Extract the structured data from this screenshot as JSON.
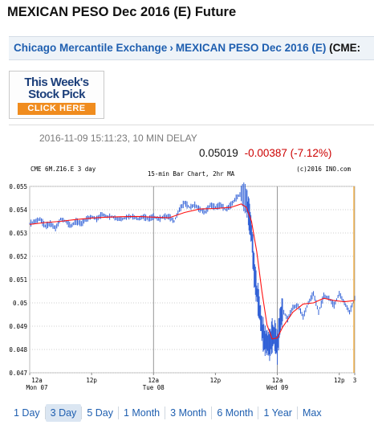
{
  "title": "MEXICAN PESO Dec 2016 (E) Future",
  "breadcrumb": {
    "exchange": "Chicago Mercantile Exchange",
    "separator": "›",
    "contract": "MEXICAN PESO Dec 2016 (E)",
    "code": "(CME:"
  },
  "ad": {
    "line1": "This Week's",
    "line2": "Stock Pick",
    "cta": "CLICK HERE"
  },
  "quote": {
    "timestamp": "2016-11-09 15:11:23, 10 MIN DELAY",
    "last": "0.05019",
    "change": "-0.00387 (-7.12%)"
  },
  "colors": {
    "link": "#1f5fb0",
    "down": "#cc0000",
    "bars": "#2f5fd6",
    "ma": "#ff1111",
    "orange_line": "#f0a020"
  },
  "chart_data": {
    "type": "line",
    "header_left": "CME 6M.Z16.E 3 day",
    "header_center": "15-min Bar Chart, 2hr MA",
    "header_right": "(c)2016 INO.com",
    "y_ticks": [
      "0.055",
      "0.054",
      "0.053",
      "0.052",
      "0.051",
      "0.05",
      "0.049",
      "0.048",
      "0.047"
    ],
    "ylim": [
      0.047,
      0.055
    ],
    "x_ticks": [
      {
        "line1": "12a",
        "line2": "Mon 07"
      },
      {
        "line1": "12p",
        "line2": ""
      },
      {
        "line1": "12a",
        "line2": "Tue 08"
      },
      {
        "line1": "12p",
        "line2": ""
      },
      {
        "line1": "12a",
        "line2": "Wed 09"
      },
      {
        "line1": "12p",
        "line2": ""
      },
      {
        "line1": "3",
        "line2": ""
      }
    ],
    "x_range_hours": [
      0,
      63
    ],
    "x_tick_hours": [
      0,
      12,
      24,
      36,
      48,
      60,
      63
    ],
    "day_dividers_hours": [
      24,
      48
    ],
    "series": [
      {
        "role": "price",
        "x": [
          0,
          1,
          2,
          3,
          4,
          5,
          6,
          7,
          8,
          9,
          10,
          11,
          12,
          13,
          14,
          15,
          16,
          17,
          18,
          19,
          20,
          21,
          22,
          23,
          24,
          25,
          26,
          27,
          28,
          29,
          30,
          31,
          32,
          33,
          34,
          35,
          36,
          37,
          38,
          39,
          40,
          41,
          42,
          42.5,
          43,
          43.5,
          44,
          44.5,
          45,
          45.5,
          46,
          46.5,
          47,
          47.5,
          48,
          48.5,
          49,
          50,
          51,
          52,
          53,
          54,
          55,
          56,
          57,
          58,
          59,
          60,
          61,
          62,
          63
        ],
        "y": [
          0.0534,
          0.0535,
          0.0536,
          0.0533,
          0.0534,
          0.0532,
          0.0536,
          0.0535,
          0.0533,
          0.0535,
          0.0534,
          0.0536,
          0.0537,
          0.0536,
          0.0538,
          0.0537,
          0.0537,
          0.0536,
          0.0536,
          0.0537,
          0.0537,
          0.0536,
          0.0537,
          0.0536,
          0.0537,
          0.0536,
          0.0537,
          0.0537,
          0.0535,
          0.054,
          0.0543,
          0.0541,
          0.0542,
          0.054,
          0.0539,
          0.0542,
          0.0541,
          0.0542,
          0.054,
          0.0542,
          0.0545,
          0.0547,
          0.0544,
          0.0538,
          0.053,
          0.0514,
          0.0505,
          0.0498,
          0.0489,
          0.0484,
          0.0483,
          0.0482,
          0.0486,
          0.0486,
          0.0481,
          0.0492,
          0.0497,
          0.0493,
          0.0498,
          0.0499,
          0.0494,
          0.05,
          0.0504,
          0.0496,
          0.0503,
          0.0502,
          0.0499,
          0.0504,
          0.05,
          0.0496,
          0.0502
        ]
      },
      {
        "role": "ma",
        "x": [
          0,
          3,
          6,
          9,
          12,
          15,
          18,
          21,
          24,
          27,
          30,
          33,
          36,
          39,
          41,
          42,
          43,
          44,
          45,
          46,
          47,
          48,
          49,
          51,
          53,
          55,
          57,
          59,
          61,
          63
        ],
        "y": [
          0.05337,
          0.05345,
          0.0535,
          0.05358,
          0.05364,
          0.05368,
          0.0537,
          0.05371,
          0.05368,
          0.05365,
          0.05388,
          0.05403,
          0.05405,
          0.0541,
          0.05425,
          0.0541,
          0.0535,
          0.0522,
          0.0505,
          0.04905,
          0.04845,
          0.0485,
          0.04895,
          0.0496,
          0.04995,
          0.05,
          0.0502,
          0.0501,
          0.05005,
          0.0501
        ]
      }
    ]
  },
  "tabs": [
    "1 Day",
    "3 Day",
    "5 Day",
    "1 Month",
    "3 Month",
    "6 Month",
    "1 Year",
    "Max"
  ],
  "active_tab": "3 Day"
}
